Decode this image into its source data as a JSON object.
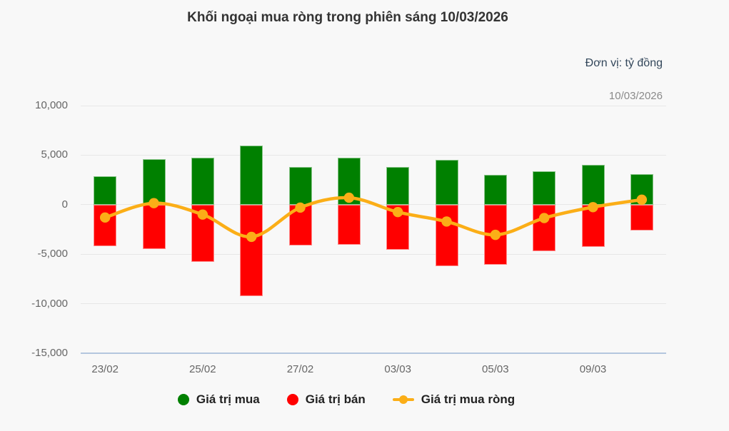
{
  "title": "Khối ngoại mua ròng trong phiên sáng 10/03/2026",
  "unit_label": "Đơn vị: tỷ đồng",
  "date_label": "10/03/2026",
  "colors": {
    "background": "#f8f8f8",
    "grid": "#e7e7e7",
    "axis_line": "#b4c6de",
    "title": "#333333",
    "tick_text": "#666666",
    "unit_text": "#33475b",
    "date_text": "#8a8a8a",
    "legend_text": "#222222",
    "buy_green": "#008000",
    "sell_red": "#ff0000",
    "net_orange": "#fbae17"
  },
  "chart_data": {
    "type": "bar",
    "subtype": "column-and-spline-combo",
    "title": "Khối ngoại mua ròng trong phiên sáng 10/03/2026",
    "xlabel": "",
    "ylabel": "",
    "unit": "tỷ đồng",
    "grid": true,
    "legend_position": "bottom",
    "ylim": [
      -15000,
      10000
    ],
    "yticks": [
      {
        "value": 10000,
        "label": "10,000"
      },
      {
        "value": 5000,
        "label": "5,000"
      },
      {
        "value": 0,
        "label": "0"
      },
      {
        "value": -5000,
        "label": "-5,000"
      },
      {
        "value": -10000,
        "label": "-10,000"
      },
      {
        "value": -15000,
        "label": "-15,000"
      }
    ],
    "categories": [
      "23/02",
      "",
      "25/02",
      "",
      "27/02",
      "",
      "03/03",
      "",
      "05/03",
      "",
      "09/03",
      ""
    ],
    "series": [
      {
        "name": "Giá trị mua",
        "type": "column",
        "color": "#008000",
        "values": [
          2900,
          4600,
          4750,
          6000,
          3800,
          4750,
          3800,
          4500,
          3000,
          3350,
          4000,
          3100
        ]
      },
      {
        "name": "Giá trị bán",
        "type": "column",
        "color": "#ff0000",
        "values": [
          -4200,
          -4450,
          -5750,
          -9250,
          -4100,
          -4050,
          -4550,
          -6200,
          -6050,
          -4700,
          -4250,
          -2600
        ]
      },
      {
        "name": "Giá trị mua ròng",
        "type": "spline",
        "color": "#fbae17",
        "values": [
          -1300,
          150,
          -1000,
          -3250,
          -300,
          700,
          -750,
          -1700,
          -3050,
          -1350,
          -250,
          500
        ]
      }
    ]
  }
}
